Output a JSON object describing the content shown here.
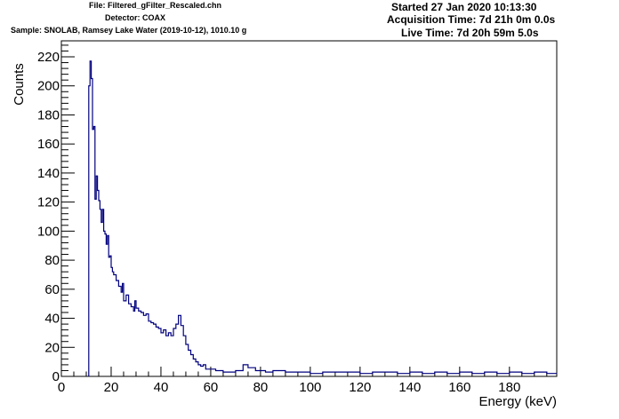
{
  "header": {
    "file": "File: Filtered_gFilter_Rescaled.chn",
    "detector": "Detector: COAX",
    "sample": "Sample: SNOLAB, Ramsey Lake Water (2019-10-12), 1010.10 g",
    "started": "Started 27 Jan 2020 10:13:30",
    "acquisition_time": "Acquisition Time: 7d 21h 0m 0.0s",
    "live_time": "Live Time: 7d 20h 59m 5.0s"
  },
  "colors": {
    "line": "#00007f",
    "axis": "#000000",
    "background": "#ffffff"
  },
  "chart_data": {
    "type": "line",
    "style": "step-histogram",
    "xlabel": "Energy (keV)",
    "ylabel": "Counts",
    "xlim": [
      0,
      199
    ],
    "ylim": [
      0,
      231
    ],
    "xticks": [
      "0",
      "20",
      "40",
      "60",
      "80",
      "100",
      "120",
      "140",
      "160",
      "180"
    ],
    "yticks": [
      "0",
      "20",
      "40",
      "60",
      "80",
      "100",
      "120",
      "140",
      "160",
      "180",
      "200",
      "220"
    ],
    "grid": false,
    "series": [
      {
        "values": [
          [
            11.0,
            200
          ],
          [
            11.5,
            217
          ],
          [
            12.0,
            205
          ],
          [
            12.5,
            170
          ],
          [
            13.0,
            172
          ],
          [
            13.5,
            122
          ],
          [
            14.0,
            138
          ],
          [
            14.5,
            128
          ],
          [
            15.0,
            121
          ],
          [
            15.5,
            115
          ],
          [
            16.0,
            106
          ],
          [
            16.5,
            115
          ],
          [
            17.0,
            100
          ],
          [
            17.5,
            98
          ],
          [
            18.0,
            91
          ],
          [
            18.5,
            97
          ],
          [
            19.0,
            82
          ],
          [
            19.5,
            83
          ],
          [
            20.0,
            75
          ],
          [
            20.5,
            72
          ],
          [
            21.0,
            70
          ],
          [
            22.0,
            66
          ],
          [
            23.0,
            62
          ],
          [
            24.0,
            58
          ],
          [
            24.5,
            64
          ],
          [
            25.0,
            52
          ],
          [
            26.0,
            56
          ],
          [
            27.0,
            50
          ],
          [
            28.0,
            48
          ],
          [
            29.0,
            45
          ],
          [
            29.5,
            52
          ],
          [
            30.0,
            47
          ],
          [
            31.0,
            45
          ],
          [
            32.0,
            44
          ],
          [
            33.0,
            42
          ],
          [
            34.0,
            43
          ],
          [
            35.0,
            38
          ],
          [
            36.0,
            37
          ],
          [
            37.0,
            36
          ],
          [
            38.0,
            34
          ],
          [
            39.0,
            33
          ],
          [
            40.0,
            30
          ],
          [
            41.0,
            32
          ],
          [
            42.0,
            28
          ],
          [
            43.0,
            30
          ],
          [
            44.0,
            28
          ],
          [
            45.0,
            33
          ],
          [
            46.0,
            36
          ],
          [
            47.0,
            42
          ],
          [
            48.0,
            35
          ],
          [
            49.0,
            28
          ],
          [
            50.0,
            22
          ],
          [
            51.0,
            18
          ],
          [
            52.0,
            15
          ],
          [
            53.0,
            12
          ],
          [
            54.0,
            10
          ],
          [
            55.0,
            8
          ],
          [
            56.0,
            7
          ],
          [
            57.0,
            8
          ],
          [
            58.0,
            5
          ],
          [
            60.0,
            5
          ],
          [
            62.0,
            4
          ],
          [
            65.0,
            3
          ],
          [
            70.0,
            4
          ],
          [
            73.0,
            8
          ],
          [
            75.0,
            6
          ],
          [
            78.0,
            4
          ],
          [
            82.0,
            3
          ],
          [
            85.0,
            4
          ],
          [
            90.0,
            3
          ],
          [
            95.0,
            3
          ],
          [
            100.0,
            2
          ],
          [
            105.0,
            3
          ],
          [
            110.0,
            3
          ],
          [
            115.0,
            3
          ],
          [
            120.0,
            2
          ],
          [
            125.0,
            3
          ],
          [
            130.0,
            3
          ],
          [
            135.0,
            2
          ],
          [
            140.0,
            3
          ],
          [
            145.0,
            2
          ],
          [
            150.0,
            3
          ],
          [
            155.0,
            2
          ],
          [
            160.0,
            3
          ],
          [
            165.0,
            2
          ],
          [
            170.0,
            3
          ],
          [
            175.0,
            2
          ],
          [
            180.0,
            3
          ],
          [
            185.0,
            2
          ],
          [
            190.0,
            3
          ],
          [
            195.0,
            2
          ],
          [
            199.0,
            2
          ]
        ]
      }
    ]
  }
}
